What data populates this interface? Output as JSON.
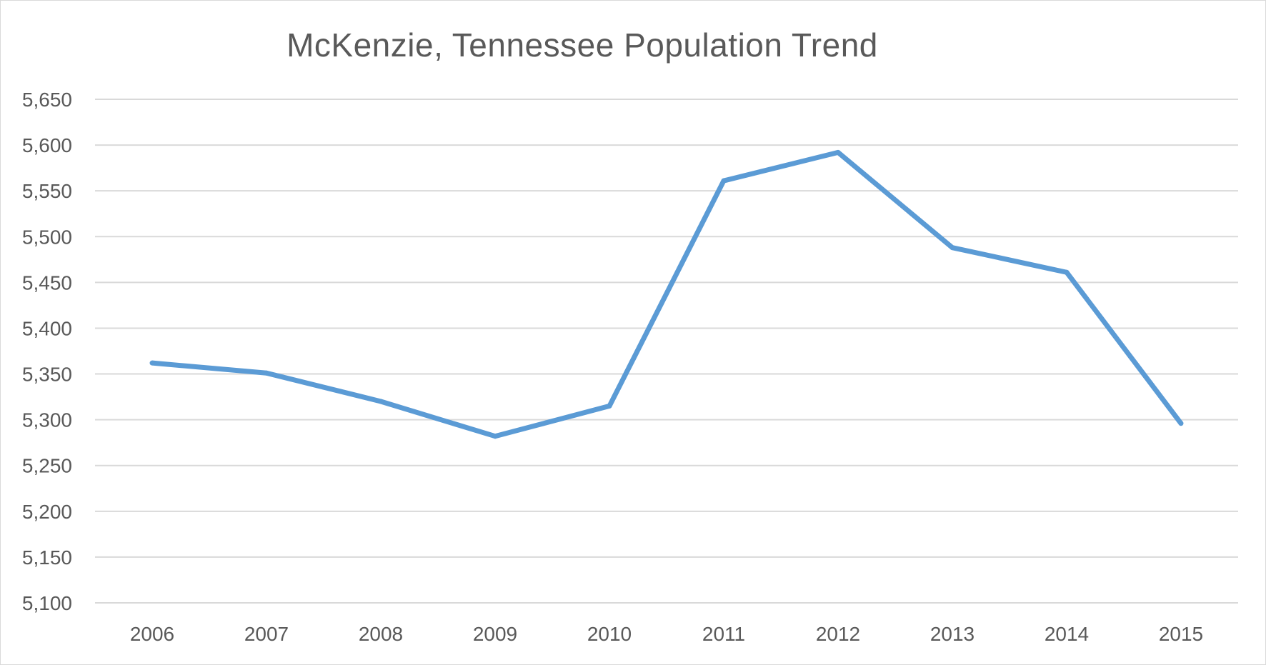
{
  "chart_data": {
    "type": "line",
    "title": "McKenzie, Tennessee Population Trend",
    "xlabel": "",
    "ylabel": "",
    "categories": [
      "2006",
      "2007",
      "2008",
      "2009",
      "2010",
      "2011",
      "2012",
      "2013",
      "2014",
      "2015"
    ],
    "series": [
      {
        "values": [
          5362,
          5351,
          5320,
          5282,
          5315,
          5561,
          5592,
          5488,
          5461,
          5296
        ],
        "color": "#5b9bd5"
      }
    ],
    "ylim": [
      5100,
      5650
    ],
    "yticks": [
      5100,
      5150,
      5200,
      5250,
      5300,
      5350,
      5400,
      5450,
      5500,
      5550,
      5600,
      5650
    ],
    "ytick_labels": [
      "5,100",
      "5,150",
      "5,200",
      "5,250",
      "5,300",
      "5,350",
      "5,400",
      "5,450",
      "5,500",
      "5,550",
      "5,600",
      "5,650"
    ],
    "grid": true,
    "gridline_color": "#d9d9d9",
    "legend": "none"
  }
}
